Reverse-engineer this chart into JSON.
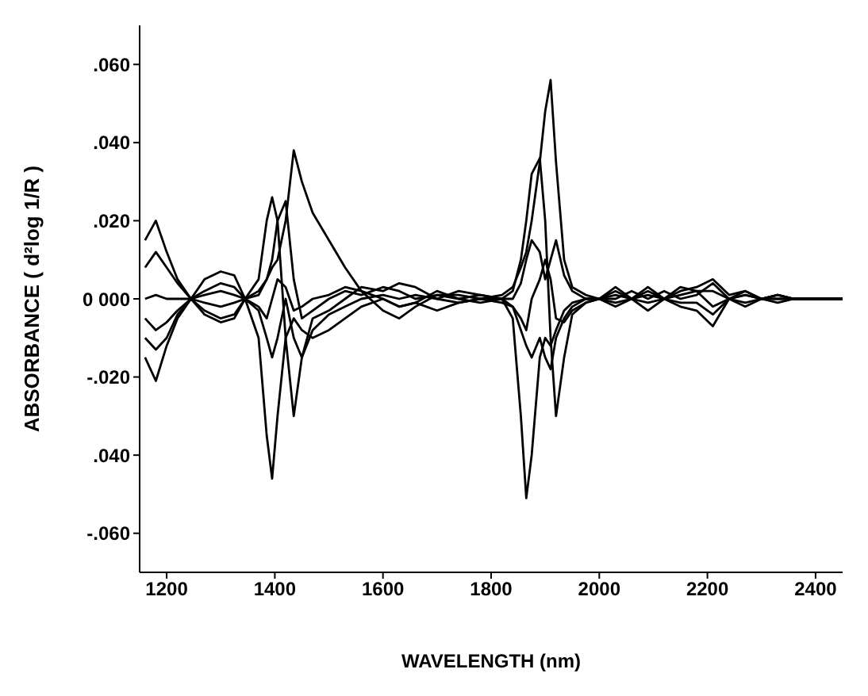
{
  "chart_data": {
    "type": "line",
    "xlabel": "WAVELENGTH (nm)",
    "ylabel": "ABSORBANCE ( d²log 1/R )",
    "marker": "none",
    "line_style": "solid",
    "grid": false,
    "legend": false,
    "x": [
      1160,
      1180,
      1200,
      1220,
      1245,
      1270,
      1300,
      1325,
      1345,
      1370,
      1385,
      1395,
      1405,
      1420,
      1435,
      1450,
      1470,
      1500,
      1530,
      1560,
      1600,
      1630,
      1660,
      1700,
      1740,
      1780,
      1820,
      1840,
      1855,
      1865,
      1875,
      1890,
      1900,
      1910,
      1920,
      1935,
      1950,
      1975,
      2000,
      2030,
      2060,
      2090,
      2120,
      2150,
      2180,
      2210,
      2240,
      2270,
      2300,
      2330,
      2360,
      2400,
      2450
    ],
    "xlim": [
      1150,
      2450
    ],
    "xticks": [
      1200,
      1400,
      1600,
      1800,
      2000,
      2200,
      2400
    ],
    "ylim": [
      -0.07,
      0.07
    ],
    "yticks": [
      {
        "value": 0.06,
        "label": ".060"
      },
      {
        "value": 0.04,
        "label": ".040"
      },
      {
        "value": 0.02,
        "label": ".020"
      },
      {
        "value": 0,
        "label": "0 000"
      },
      {
        "value": -0.02,
        "label": "-.020"
      },
      {
        "value": -0.04,
        "label": ".040"
      },
      {
        "value": -0.06,
        "label": "-.060"
      }
    ],
    "series": [
      {
        "color": "#000000",
        "values": [
          0.008,
          0.012,
          0.008,
          0.004,
          0,
          -0.003,
          -0.005,
          -0.004,
          0,
          0.002,
          0.005,
          0.008,
          0.01,
          0.02,
          0.038,
          0.03,
          0.022,
          0.015,
          0.008,
          0.002,
          -0.003,
          -0.005,
          -0.002,
          0.001,
          0.001,
          0,
          0.001,
          0.003,
          0.008,
          0.012,
          0.02,
          0.035,
          0.048,
          0.056,
          0.035,
          0.01,
          0.003,
          0.001,
          0,
          0,
          0.002,
          0,
          0.002,
          0,
          0.001,
          0.004,
          0,
          0.002,
          0,
          0.001,
          0,
          0,
          0
        ]
      },
      {
        "color": "#000000",
        "values": [
          0.015,
          0.02,
          0.012,
          0.005,
          0,
          0.005,
          0.007,
          0.006,
          0,
          0.005,
          0.02,
          0.026,
          0.02,
          -0.01,
          -0.03,
          -0.015,
          -0.005,
          -0.003,
          0,
          0.003,
          0.002,
          0.004,
          0.003,
          0,
          0.002,
          0.001,
          0,
          0.002,
          0.01,
          0.02,
          0.032,
          0.036,
          0.02,
          -0.01,
          -0.03,
          -0.015,
          -0.004,
          -0.001,
          0,
          0.002,
          0,
          0.002,
          0,
          0.002,
          0.003,
          0.005,
          0.001,
          0.002,
          0,
          0.001,
          0,
          0,
          0
        ]
      },
      {
        "color": "#000000",
        "values": [
          -0.015,
          -0.021,
          -0.012,
          -0.005,
          0,
          -0.004,
          -0.006,
          -0.005,
          0,
          -0.01,
          -0.035,
          -0.046,
          -0.03,
          -0.01,
          -0.005,
          -0.008,
          -0.01,
          -0.008,
          -0.005,
          -0.002,
          0,
          -0.002,
          -0.001,
          0.002,
          0,
          -0.001,
          0,
          -0.005,
          -0.03,
          -0.051,
          -0.04,
          -0.015,
          -0.01,
          -0.012,
          -0.008,
          -0.003,
          -0.001,
          0,
          0,
          -0.002,
          0,
          -0.003,
          0,
          -0.002,
          -0.003,
          -0.007,
          0,
          -0.002,
          0,
          -0.001,
          0,
          0,
          0
        ]
      },
      {
        "color": "#000000",
        "values": [
          -0.005,
          -0.008,
          -0.006,
          -0.003,
          0,
          0.002,
          0.004,
          0.003,
          0,
          0.001,
          0.005,
          0.01,
          0.02,
          0.025,
          0.005,
          -0.005,
          -0.003,
          0,
          0.002,
          0.001,
          0.003,
          0.002,
          0,
          0.001,
          0,
          0.001,
          0,
          0,
          0.004,
          0.01,
          0.015,
          0.012,
          0.005,
          0.01,
          0.015,
          0.006,
          0.002,
          0,
          0,
          0.001,
          0,
          0.001,
          0,
          0.001,
          0.002,
          0.002,
          0,
          0.001,
          0,
          0,
          0,
          0,
          0
        ]
      },
      {
        "color": "#000000",
        "values": [
          -0.01,
          -0.013,
          -0.01,
          -0.004,
          0,
          0.001,
          0.002,
          0.001,
          0,
          -0.003,
          -0.01,
          -0.015,
          -0.01,
          0,
          -0.01,
          -0.015,
          -0.008,
          -0.004,
          -0.002,
          0,
          0.001,
          0,
          0.001,
          0,
          -0.001,
          0,
          -0.001,
          -0.002,
          -0.008,
          -0.012,
          -0.015,
          -0.01,
          -0.015,
          -0.018,
          -0.01,
          -0.005,
          -0.002,
          0,
          0,
          -0.001,
          0,
          -0.001,
          0,
          -0.001,
          -0.001,
          -0.004,
          0,
          -0.001,
          0,
          0,
          0,
          0,
          0
        ]
      },
      {
        "color": "#000000",
        "values": [
          0,
          0.001,
          0,
          0,
          0,
          -0.001,
          -0.002,
          -0.001,
          0,
          -0.002,
          -0.005,
          0,
          0.005,
          0.003,
          -0.003,
          -0.002,
          0,
          0.001,
          0.003,
          0.002,
          0,
          -0.002,
          -0.001,
          -0.003,
          -0.001,
          0,
          0,
          -0.002,
          -0.005,
          -0.008,
          0,
          0.005,
          0.01,
          0.005,
          -0.005,
          -0.006,
          -0.003,
          -0.001,
          0,
          0.003,
          0,
          0.003,
          0,
          0.003,
          0.002,
          -0.002,
          0,
          0.001,
          0,
          0.001,
          0,
          0,
          0
        ]
      }
    ]
  }
}
